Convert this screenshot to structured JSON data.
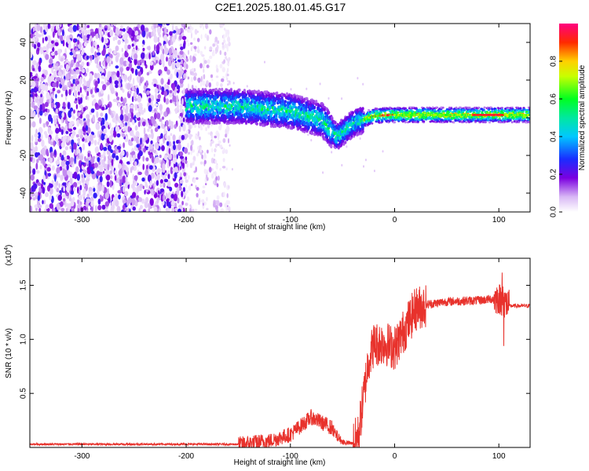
{
  "figure_title": "C2E1.2025.180.01.45.G17",
  "chart_data": [
    {
      "type": "heatmap",
      "xlabel": "Height of straight line (km)",
      "ylabel": "Frequency (Hz)",
      "xlim": [
        -350,
        130
      ],
      "ylim": [
        -50,
        50
      ],
      "xticks": [
        -300,
        -200,
        -100,
        0,
        100
      ],
      "yticks": [
        -40,
        -20,
        0,
        20,
        40
      ],
      "colorbar": {
        "label": "Normalized spectral amplitude",
        "range": [
          0,
          1
        ],
        "ticks": [
          "0.0",
          "0.2",
          "0.4",
          "0.6",
          "0.8"
        ],
        "colormap": "rainbow (white-violet-blue-cyan-green-yellow-red-magenta)"
      },
      "regions": [
        {
          "x": [
            -350,
            -200
          ],
          "description": "scattered noise over full frequency range, amplitude 0.05-0.25"
        },
        {
          "x": [
            -200,
            -160
          ],
          "description": "sparse noise, amplitude 0.02-0.1"
        },
        {
          "x": [
            -200,
            -60
          ],
          "center_frequency": [
            6,
            5,
            4,
            3,
            0,
            -5
          ],
          "description": "broad signal band, amplitude 0.2-0.5"
        },
        {
          "x": [
            -60,
            -30
          ],
          "center_frequency": [
            -10,
            -3
          ],
          "description": "signal dip"
        },
        {
          "x": [
            -30,
            130
          ],
          "center_frequency": [
            0,
            2
          ],
          "description": "narrow signal band, amplitude 0.5-1.0"
        }
      ]
    },
    {
      "type": "line",
      "xlabel": "Height of straight line (km)",
      "ylabel": "SNR (10 * v/v)",
      "y_multiplier": "(x10",
      "y_exponent": "4",
      "y_multiplier_close": ")",
      "xlim": [
        -350,
        130
      ],
      "ylim": [
        0,
        1.75
      ],
      "xticks": [
        -300,
        -200,
        -100,
        0,
        100
      ],
      "yticks": [
        "0.5",
        "1.0",
        "1.5"
      ],
      "color": "#e8322c",
      "series": [
        {
          "x": [
            -350,
            -300,
            -250,
            -200,
            -150,
            -120,
            -100,
            -80,
            -60,
            -50,
            -40,
            -35,
            -30,
            -25,
            -20,
            -10,
            0,
            10,
            20,
            30,
            50,
            80,
            100,
            110,
            130
          ],
          "values": [
            0.03,
            0.03,
            0.03,
            0.03,
            0.03,
            0.06,
            0.12,
            0.28,
            0.18,
            0.06,
            0.04,
            0.1,
            0.45,
            0.82,
            0.95,
            0.97,
            0.92,
            1.1,
            1.28,
            1.32,
            1.35,
            1.36,
            1.38,
            1.31,
            1.31
          ]
        }
      ]
    }
  ]
}
